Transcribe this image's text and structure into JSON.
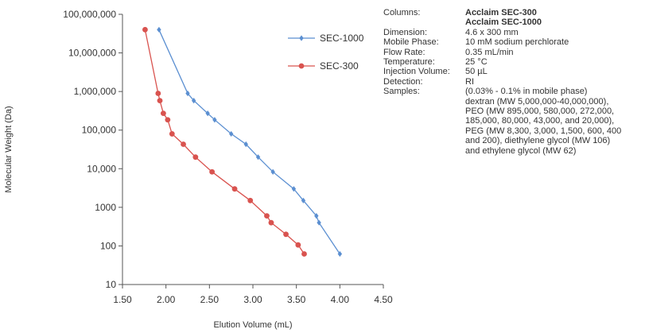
{
  "chart_data": {
    "type": "scatter",
    "xlabel": "Elution Volume (mL)",
    "ylabel": "Molecular Weight (Da)",
    "xlim": [
      1.5,
      4.5
    ],
    "ylim": [
      10,
      100000000
    ],
    "y_scale": "log",
    "x_ticks": [
      1.5,
      2.0,
      2.5,
      3.0,
      3.5,
      4.0,
      4.5
    ],
    "x_tick_labels": [
      "1.50",
      "2.00",
      "2.50",
      "3.00",
      "3.50",
      "4.00",
      "4.50"
    ],
    "y_ticks": [
      10,
      100,
      1000,
      10000,
      100000,
      1000000,
      10000000,
      100000000
    ],
    "y_tick_labels": [
      "10",
      "100",
      "1000",
      "10,000",
      "100,000",
      "1,000,000",
      "10,000,000",
      "100,000,000"
    ],
    "grid": false,
    "legend_position": "top-right",
    "series": [
      {
        "name": "SEC-1000",
        "color": "#5b8fd1",
        "marker": "diamond",
        "points": [
          [
            1.92,
            40000000
          ],
          [
            2.25,
            895000
          ],
          [
            2.32,
            580000
          ],
          [
            2.48,
            272000
          ],
          [
            2.56,
            185000
          ],
          [
            2.75,
            80000
          ],
          [
            2.92,
            43000
          ],
          [
            3.06,
            20000
          ],
          [
            3.23,
            8300
          ],
          [
            3.47,
            3000
          ],
          [
            3.58,
            1500
          ],
          [
            3.73,
            600
          ],
          [
            3.76,
            400
          ],
          [
            4.0,
            62
          ]
        ]
      },
      {
        "name": "SEC-300",
        "color": "#d9534f",
        "marker": "circle",
        "points": [
          [
            1.76,
            40000000
          ],
          [
            1.91,
            895000
          ],
          [
            1.93,
            580000
          ],
          [
            1.97,
            272000
          ],
          [
            2.02,
            185000
          ],
          [
            2.07,
            80000
          ],
          [
            2.2,
            43000
          ],
          [
            2.34,
            20000
          ],
          [
            2.53,
            8300
          ],
          [
            2.79,
            3000
          ],
          [
            2.97,
            1500
          ],
          [
            3.16,
            600
          ],
          [
            3.21,
            400
          ],
          [
            3.38,
            200
          ],
          [
            3.52,
            106
          ],
          [
            3.59,
            62
          ]
        ]
      }
    ]
  },
  "conditions": {
    "columns_label": "Columns:",
    "columns_value_1": "Acclaim SEC-300",
    "columns_value_2": "Acclaim SEC-1000",
    "dimension_label": "Dimension:",
    "dimension_value": "4.6 x 300 mm",
    "mobile_phase_label": "Mobile Phase:",
    "mobile_phase_value": "10 mM sodium perchlorate",
    "flow_rate_label": "Flow Rate:",
    "flow_rate_value": "0.35 mL/min",
    "temperature_label": "Temperature:",
    "temperature_value": "25 °C",
    "injection_volume_label": "Injection Volume:",
    "injection_volume_value": "50 µL",
    "detection_label": "Detection:",
    "detection_value": "RI",
    "samples_label": "Samples:",
    "samples_lines": [
      "(0.03% - 0.1% in mobile phase)",
      "dextran (MW 5,000,000-40,000,000),",
      "PEO (MW 895,000, 580,000, 272,000,",
      "185,000, 80,000, 43,000, and 20,000),",
      "PEG (MW 8,300, 3,000, 1,500, 600, 400",
      "and 200), diethylene glycol (MW 106)",
      "and ethylene glycol (MW 62)"
    ]
  }
}
